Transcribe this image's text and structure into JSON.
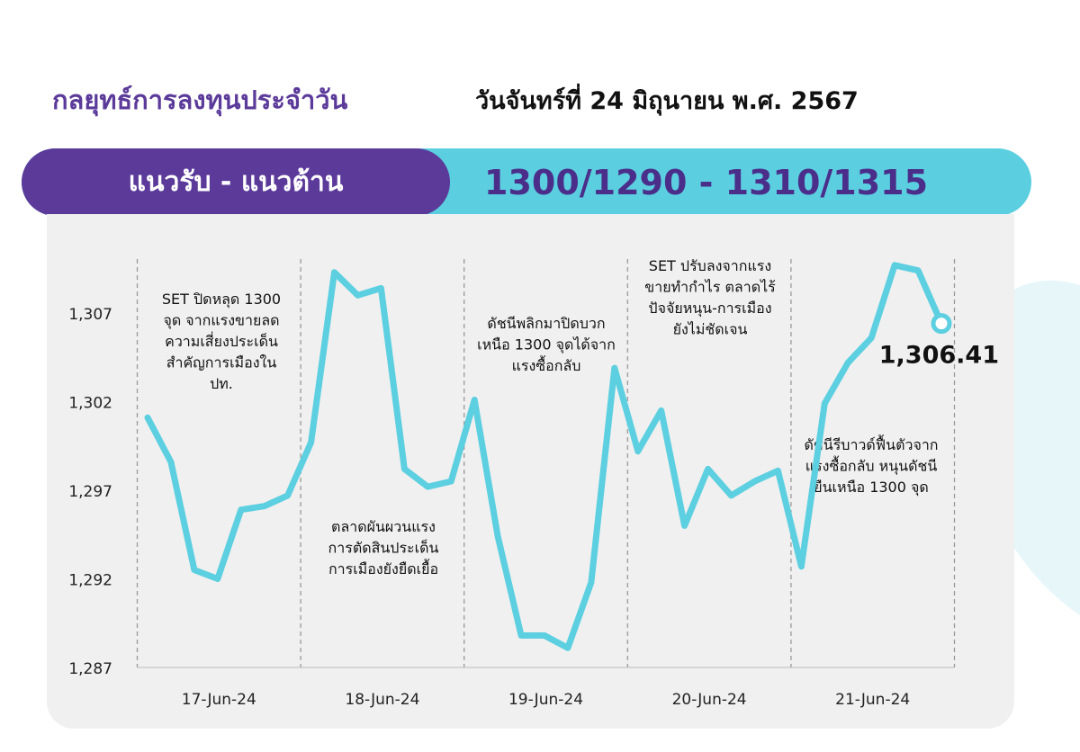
{
  "header": {
    "title": "กลยุทธ์การลงทุนประจำวัน",
    "date": "วันจันทร์ที่ 24 มิถุนายน พ.ศ. 2567"
  },
  "levels": {
    "label": "แนวรับ - แนวต้าน",
    "value": "1300/1290  -  1310/1315"
  },
  "colors": {
    "purple": "#5b3a9a",
    "cyan": "#5bcfe0",
    "line": "#5ccfe0",
    "panel": "#f0f0f0"
  },
  "chart_data": {
    "type": "line",
    "y_ticks": [
      "1,287",
      "1,292",
      "1,297",
      "1,302",
      "1,307"
    ],
    "ylim": [
      1287,
      1307
    ],
    "x_ticks": [
      "17-Jun-24",
      "18-Jun-24",
      "19-Jun-24",
      "20-Jun-24",
      "21-Jun-24"
    ],
    "grid": "dashed vertical separators between days",
    "values": [
      1301.1,
      1298.6,
      1292.5,
      1292.0,
      1295.9,
      1296.1,
      1296.7,
      1299.7,
      1309.3,
      1308.0,
      1308.4,
      1298.2,
      1297.2,
      1297.5,
      1302.1,
      1294.4,
      1288.8,
      1288.8,
      1288.1,
      1291.8,
      1303.9,
      1299.2,
      1301.5,
      1295.0,
      1298.2,
      1296.7,
      1297.5,
      1298.1,
      1292.7,
      1301.9,
      1304.2,
      1305.6,
      1309.7,
      1309.4,
      1306.41
    ],
    "last_value_label": "1,306.41",
    "annotations": [
      {
        "lines": [
          "SET ปิดหลุด 1300",
          "จุด จากแรงขายลด",
          "ความเสี่ยงประเด็น",
          "สำคัญการเมืองใน",
          "ปท."
        ]
      },
      {
        "lines": [
          "ตลาดผันผวนแรง",
          "การตัดสินประเด็น",
          "การเมืองยังยืดเยื้อ"
        ]
      },
      {
        "lines": [
          "ดัชนีพลิกมาปิดบวก",
          "เหนือ 1300 จุดได้จาก",
          "แรงซื้อกลับ"
        ]
      },
      {
        "lines": [
          "SET ปรับลงจากแรง",
          "ขายทำกำไร ตลาดไร้",
          "ปัจจัยหนุน-การเมือง",
          "ยังไม่ชัดเจน"
        ]
      },
      {
        "lines": [
          "ดัชนีรีบาวด์ฟื้นตัวจาก",
          "แรงซื้อกลับ หนุนดัชนี",
          "ยืนเหนือ 1300 จุด"
        ]
      }
    ]
  }
}
